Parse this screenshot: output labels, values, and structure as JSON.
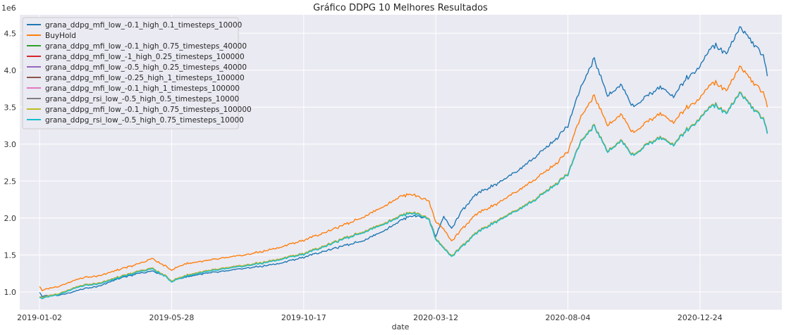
{
  "chart_data": {
    "type": "line",
    "title": "Gráfico DDPG 10 Melhores Resultados",
    "xlabel": "date",
    "ylabel": "",
    "y_offset_label": "1e6",
    "ylim": [
      0.76,
      4.75
    ],
    "y_ticks": [
      1.0,
      1.5,
      2.0,
      2.5,
      3.0,
      3.5,
      4.0,
      4.5
    ],
    "x_tick_labels": [
      "2019-01-02",
      "2019-05-28",
      "2019-10-17",
      "2020-03-12",
      "2020-08-04",
      "2020-12-24"
    ],
    "x_tick_index": [
      0,
      100,
      200,
      300,
      400,
      500
    ],
    "x_count": 552,
    "grid": true,
    "legend_position": "top-left",
    "series_legend": [
      {
        "name": "grana_ddpg_mfi_low_-0.1_high_0.1_timesteps_10000",
        "color": "#1f77b4"
      },
      {
        "name": "BuyHold",
        "color": "#ff7f0e"
      },
      {
        "name": "grana_ddpg_mfi_low_-0.1_high_0.75_timesteps_40000",
        "color": "#2ca02c"
      },
      {
        "name": "grana_ddpg_mfi_low_-1_high_0.25_timesteps_100000",
        "color": "#d62728"
      },
      {
        "name": "grana_ddpg_mfi_low_-0.5_high_0.25_timesteps_40000",
        "color": "#9467bd"
      },
      {
        "name": "grana_ddpg_mfi_low_-0.25_high_1_timesteps_100000",
        "color": "#8c564b"
      },
      {
        "name": "grana_ddpg_mfi_low_-0.1_high_1_timesteps_100000",
        "color": "#e377c2"
      },
      {
        "name": "grana_ddpg_rsi_low_-0.5_high_0.5_timesteps_10000",
        "color": "#7f7f7f"
      },
      {
        "name": "grana_ddpg_mfi_low_-0.1_high_0.75_timesteps_100000",
        "color": "#bcbd22"
      },
      {
        "name": "grana_ddpg_rsi_low_-0.5_high_0.75_timesteps_10000",
        "color": "#17becf"
      }
    ],
    "series": [
      {
        "name": "grana_ddpg_mfi_low_-0.1_high_0.1_timesteps_10000",
        "color": "#1f77b4",
        "x": [
          0,
          2,
          8,
          15,
          25,
          35,
          45,
          60,
          75,
          85,
          95,
          100,
          110,
          125,
          140,
          155,
          170,
          185,
          200,
          215,
          230,
          245,
          260,
          272,
          280,
          288,
          295,
          300,
          306,
          312,
          320,
          330,
          345,
          360,
          375,
          390,
          400,
          410,
          420,
          430,
          440,
          450,
          460,
          470,
          480,
          490,
          500,
          510,
          520,
          530,
          540,
          548,
          551
        ],
        "y": [
          1.0,
          0.94,
          0.95,
          0.96,
          1.0,
          1.05,
          1.08,
          1.18,
          1.25,
          1.28,
          1.22,
          1.15,
          1.2,
          1.25,
          1.28,
          1.32,
          1.35,
          1.4,
          1.47,
          1.55,
          1.62,
          1.7,
          1.82,
          1.95,
          2.03,
          2.02,
          1.98,
          1.75,
          2.02,
          1.85,
          2.1,
          2.32,
          2.45,
          2.62,
          2.82,
          3.05,
          3.25,
          3.78,
          4.15,
          3.65,
          3.8,
          3.5,
          3.65,
          3.78,
          3.65,
          3.9,
          4.05,
          4.35,
          4.22,
          4.58,
          4.38,
          4.2,
          3.92
        ]
      },
      {
        "name": "BuyHold",
        "color": "#ff7f0e",
        "x": [
          0,
          2,
          8,
          15,
          25,
          35,
          45,
          60,
          75,
          85,
          95,
          100,
          110,
          125,
          140,
          155,
          170,
          185,
          200,
          215,
          230,
          245,
          260,
          272,
          280,
          288,
          295,
          300,
          306,
          312,
          320,
          330,
          345,
          360,
          375,
          390,
          400,
          410,
          420,
          430,
          440,
          450,
          460,
          470,
          480,
          490,
          500,
          510,
          520,
          530,
          540,
          548,
          551
        ],
        "y": [
          1.08,
          1.02,
          1.05,
          1.08,
          1.15,
          1.2,
          1.22,
          1.3,
          1.38,
          1.45,
          1.35,
          1.3,
          1.38,
          1.42,
          1.46,
          1.5,
          1.55,
          1.62,
          1.7,
          1.8,
          1.9,
          2.02,
          2.15,
          2.28,
          2.33,
          2.28,
          2.22,
          1.95,
          1.85,
          1.68,
          1.85,
          2.05,
          2.18,
          2.35,
          2.52,
          2.72,
          2.9,
          3.38,
          3.65,
          3.25,
          3.4,
          3.15,
          3.3,
          3.42,
          3.3,
          3.5,
          3.62,
          3.85,
          3.72,
          4.05,
          3.85,
          3.7,
          3.5
        ]
      },
      {
        "name": "grana_ddpg_mfi_low_-0.1_high_0.75_timesteps_40000",
        "color": "#2ca02c",
        "x": [
          0,
          2,
          8,
          15,
          25,
          35,
          45,
          60,
          75,
          85,
          95,
          100,
          110,
          125,
          140,
          155,
          170,
          185,
          200,
          215,
          230,
          245,
          260,
          272,
          280,
          288,
          295,
          300,
          306,
          312,
          320,
          330,
          345,
          360,
          375,
          390,
          400,
          410,
          420,
          430,
          440,
          450,
          460,
          470,
          480,
          490,
          500,
          510,
          520,
          530,
          540,
          548,
          551
        ],
        "y": [
          0.94,
          0.92,
          0.95,
          0.98,
          1.05,
          1.1,
          1.12,
          1.2,
          1.28,
          1.32,
          1.22,
          1.15,
          1.22,
          1.28,
          1.32,
          1.36,
          1.4,
          1.46,
          1.52,
          1.62,
          1.72,
          1.82,
          1.92,
          2.02,
          2.08,
          2.05,
          1.98,
          1.72,
          1.6,
          1.48,
          1.62,
          1.8,
          1.95,
          2.1,
          2.25,
          2.45,
          2.6,
          3.05,
          3.25,
          2.9,
          3.05,
          2.85,
          3.0,
          3.1,
          3.0,
          3.2,
          3.35,
          3.55,
          3.42,
          3.7,
          3.5,
          3.35,
          3.15
        ]
      },
      {
        "name": "grana_ddpg_mfi_low_-1_high_0.25_timesteps_100000",
        "color": "#d62728",
        "x": [
          0,
          2,
          8,
          15,
          25,
          35,
          45,
          60,
          75,
          85,
          95,
          100,
          110,
          125,
          140,
          155,
          170,
          185,
          200,
          215,
          230,
          245,
          260,
          272,
          280,
          288,
          295,
          300,
          306,
          312,
          320,
          330,
          345,
          360,
          375,
          390,
          400,
          410,
          420,
          430,
          440,
          450,
          460,
          470,
          480,
          490,
          500,
          510,
          520,
          530,
          540,
          548,
          551
        ],
        "y": [
          0.94,
          0.92,
          0.95,
          0.98,
          1.05,
          1.1,
          1.12,
          1.2,
          1.28,
          1.32,
          1.22,
          1.15,
          1.22,
          1.28,
          1.32,
          1.36,
          1.4,
          1.46,
          1.52,
          1.62,
          1.72,
          1.82,
          1.92,
          2.02,
          2.08,
          2.05,
          1.98,
          1.72,
          1.6,
          1.48,
          1.62,
          1.8,
          1.95,
          2.1,
          2.25,
          2.45,
          2.6,
          3.05,
          3.25,
          2.9,
          3.05,
          2.85,
          3.0,
          3.1,
          3.0,
          3.2,
          3.35,
          3.55,
          3.42,
          3.7,
          3.5,
          3.35,
          3.15
        ]
      },
      {
        "name": "grana_ddpg_mfi_low_-0.5_high_0.25_timesteps_40000",
        "color": "#9467bd",
        "x": [
          0,
          2,
          8,
          15,
          25,
          35,
          45,
          60,
          75,
          85,
          95,
          100,
          110,
          125,
          140,
          155,
          170,
          185,
          200,
          215,
          230,
          245,
          260,
          272,
          280,
          288,
          295,
          300,
          306,
          312,
          320,
          330,
          345,
          360,
          375,
          390,
          400,
          410,
          420,
          430,
          440,
          450,
          460,
          470,
          480,
          490,
          500,
          510,
          520,
          530,
          540,
          548,
          551
        ],
        "y": [
          0.94,
          0.92,
          0.95,
          0.98,
          1.05,
          1.1,
          1.12,
          1.2,
          1.28,
          1.32,
          1.22,
          1.15,
          1.22,
          1.28,
          1.32,
          1.36,
          1.4,
          1.46,
          1.52,
          1.62,
          1.72,
          1.82,
          1.92,
          2.02,
          2.08,
          2.05,
          1.98,
          1.72,
          1.6,
          1.48,
          1.62,
          1.8,
          1.95,
          2.1,
          2.25,
          2.45,
          2.6,
          3.05,
          3.25,
          2.9,
          3.05,
          2.85,
          3.0,
          3.1,
          3.0,
          3.2,
          3.35,
          3.55,
          3.42,
          3.7,
          3.5,
          3.35,
          3.15
        ]
      },
      {
        "name": "grana_ddpg_mfi_low_-0.25_high_1_timesteps_100000",
        "color": "#8c564b",
        "x": [
          0,
          2,
          8,
          15,
          25,
          35,
          45,
          60,
          75,
          85,
          95,
          100,
          110,
          125,
          140,
          155,
          170,
          185,
          200,
          215,
          230,
          245,
          260,
          272,
          280,
          288,
          295,
          300,
          306,
          312,
          320,
          330,
          345,
          360,
          375,
          390,
          400,
          410,
          420,
          430,
          440,
          450,
          460,
          470,
          480,
          490,
          500,
          510,
          520,
          530,
          540,
          548,
          551
        ],
        "y": [
          0.94,
          0.92,
          0.95,
          0.98,
          1.05,
          1.1,
          1.12,
          1.2,
          1.28,
          1.32,
          1.22,
          1.15,
          1.22,
          1.28,
          1.32,
          1.36,
          1.4,
          1.46,
          1.52,
          1.62,
          1.72,
          1.82,
          1.92,
          2.02,
          2.08,
          2.05,
          1.98,
          1.72,
          1.6,
          1.48,
          1.62,
          1.8,
          1.95,
          2.1,
          2.25,
          2.45,
          2.6,
          3.05,
          3.25,
          2.9,
          3.05,
          2.85,
          3.0,
          3.1,
          3.0,
          3.2,
          3.35,
          3.55,
          3.42,
          3.7,
          3.5,
          3.35,
          3.15
        ]
      },
      {
        "name": "grana_ddpg_mfi_low_-0.1_high_1_timesteps_100000",
        "color": "#e377c2",
        "x": [
          0,
          2,
          8,
          15,
          25,
          35,
          45,
          60,
          75,
          85,
          95,
          100,
          110,
          125,
          140,
          155,
          170,
          185,
          200,
          215,
          230,
          245,
          260,
          272,
          280,
          288,
          295,
          300,
          306,
          312,
          320,
          330,
          345,
          360,
          375,
          390,
          400,
          410,
          420,
          430,
          440,
          450,
          460,
          470,
          480,
          490,
          500,
          510,
          520,
          530,
          540,
          548,
          551
        ],
        "y": [
          0.94,
          0.92,
          0.95,
          0.98,
          1.05,
          1.1,
          1.12,
          1.2,
          1.28,
          1.32,
          1.22,
          1.15,
          1.22,
          1.28,
          1.32,
          1.36,
          1.4,
          1.46,
          1.52,
          1.62,
          1.72,
          1.82,
          1.92,
          2.02,
          2.08,
          2.05,
          1.98,
          1.72,
          1.6,
          1.48,
          1.62,
          1.8,
          1.95,
          2.1,
          2.25,
          2.45,
          2.6,
          3.05,
          3.25,
          2.9,
          3.05,
          2.85,
          3.0,
          3.1,
          3.0,
          3.2,
          3.35,
          3.55,
          3.42,
          3.7,
          3.5,
          3.35,
          3.15
        ]
      },
      {
        "name": "grana_ddpg_rsi_low_-0.5_high_0.5_timesteps_10000",
        "color": "#7f7f7f",
        "x": [
          0,
          2,
          8,
          15,
          25,
          35,
          45,
          60,
          75,
          85,
          95,
          100,
          110,
          125,
          140,
          155,
          170,
          185,
          200,
          215,
          230,
          245,
          260,
          272,
          280,
          288,
          295,
          300,
          306,
          312,
          320,
          330,
          345,
          360,
          375,
          390,
          400,
          410,
          420,
          430,
          440,
          450,
          460,
          470,
          480,
          490,
          500,
          510,
          520,
          530,
          540,
          548,
          551
        ],
        "y": [
          0.94,
          0.92,
          0.95,
          0.98,
          1.05,
          1.1,
          1.12,
          1.2,
          1.28,
          1.32,
          1.22,
          1.15,
          1.22,
          1.28,
          1.32,
          1.36,
          1.4,
          1.46,
          1.52,
          1.62,
          1.72,
          1.82,
          1.92,
          2.02,
          2.08,
          2.05,
          1.98,
          1.72,
          1.6,
          1.48,
          1.62,
          1.8,
          1.95,
          2.1,
          2.25,
          2.45,
          2.6,
          3.05,
          3.25,
          2.9,
          3.05,
          2.85,
          3.0,
          3.1,
          3.0,
          3.2,
          3.35,
          3.55,
          3.42,
          3.7,
          3.5,
          3.35,
          3.15
        ]
      },
      {
        "name": "grana_ddpg_mfi_low_-0.1_high_0.75_timesteps_100000",
        "color": "#bcbd22",
        "x": [
          0,
          2,
          8,
          15,
          25,
          35,
          45,
          60,
          75,
          85,
          95,
          100,
          110,
          125,
          140,
          155,
          170,
          185,
          200,
          215,
          230,
          245,
          260,
          272,
          280,
          288,
          295,
          300,
          306,
          312,
          320,
          330,
          345,
          360,
          375,
          390,
          400,
          410,
          420,
          430,
          440,
          450,
          460,
          470,
          480,
          490,
          500,
          510,
          520,
          530,
          540,
          548,
          551
        ],
        "y": [
          0.94,
          0.92,
          0.95,
          0.98,
          1.05,
          1.1,
          1.12,
          1.2,
          1.28,
          1.32,
          1.22,
          1.15,
          1.22,
          1.28,
          1.32,
          1.36,
          1.4,
          1.46,
          1.52,
          1.62,
          1.72,
          1.82,
          1.92,
          2.02,
          2.08,
          2.05,
          1.98,
          1.72,
          1.6,
          1.48,
          1.62,
          1.8,
          1.95,
          2.1,
          2.25,
          2.45,
          2.6,
          3.05,
          3.25,
          2.9,
          3.05,
          2.85,
          3.0,
          3.1,
          3.0,
          3.2,
          3.35,
          3.55,
          3.42,
          3.7,
          3.5,
          3.35,
          3.15
        ]
      },
      {
        "name": "grana_ddpg_rsi_low_-0.5_high_0.75_timesteps_10000",
        "color": "#17becf",
        "x": [
          0,
          2,
          8,
          15,
          25,
          35,
          45,
          60,
          75,
          85,
          95,
          100,
          110,
          125,
          140,
          155,
          170,
          185,
          200,
          215,
          230,
          245,
          260,
          272,
          280,
          288,
          295,
          300,
          306,
          312,
          320,
          330,
          345,
          360,
          375,
          390,
          400,
          410,
          420,
          430,
          440,
          450,
          460,
          470,
          480,
          490,
          500,
          510,
          520,
          530,
          540,
          548,
          551
        ],
        "y": [
          0.93,
          0.91,
          0.94,
          0.97,
          1.04,
          1.09,
          1.11,
          1.19,
          1.27,
          1.31,
          1.21,
          1.14,
          1.21,
          1.27,
          1.31,
          1.35,
          1.39,
          1.45,
          1.51,
          1.61,
          1.71,
          1.81,
          1.91,
          2.01,
          2.07,
          2.04,
          1.97,
          1.71,
          1.59,
          1.47,
          1.61,
          1.79,
          1.94,
          2.09,
          2.24,
          2.44,
          2.59,
          3.04,
          3.24,
          2.89,
          3.04,
          2.84,
          2.99,
          3.09,
          2.99,
          3.19,
          3.34,
          3.54,
          3.41,
          3.69,
          3.49,
          3.34,
          3.14
        ]
      }
    ]
  }
}
